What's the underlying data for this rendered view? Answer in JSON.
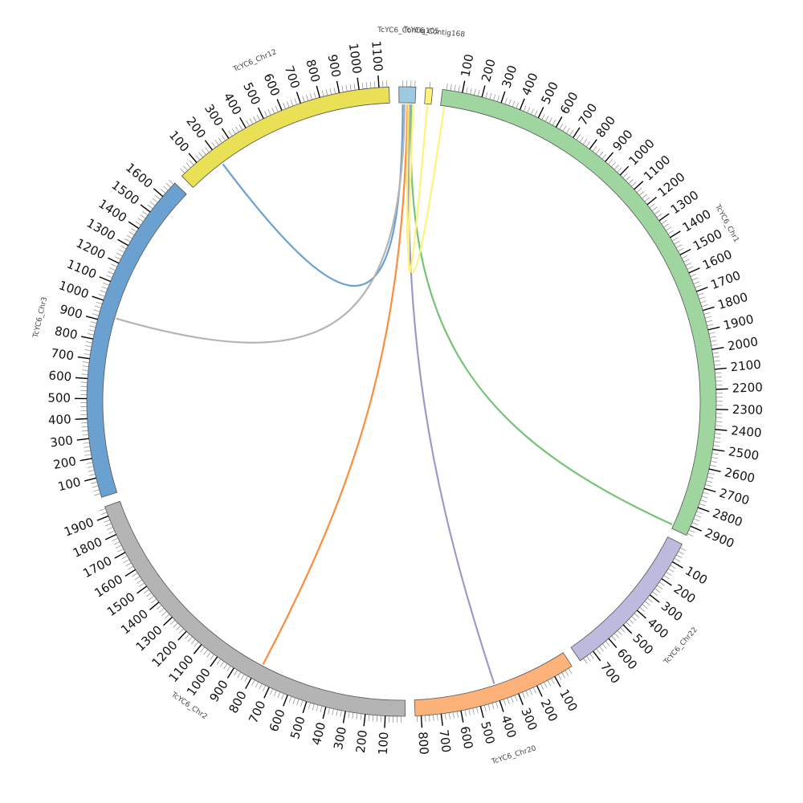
{
  "diagram": {
    "type": "circos",
    "tick_interval": 100,
    "segments": [
      {
        "id": "chr1",
        "name": "TcYC6_Chr1",
        "length": 2950,
        "color": "#9fd6a0"
      },
      {
        "id": "chr22",
        "name": "TcYC6_Chr22",
        "length": 780,
        "color": "#bdbbdd"
      },
      {
        "id": "chr20",
        "name": "TcYC6_Chr20",
        "length": 830,
        "color": "#fdb27a"
      },
      {
        "id": "chr2",
        "name": "TcYC6_Chr2",
        "length": 1950,
        "color": "#b4b4b4"
      },
      {
        "id": "chr3",
        "name": "TcYC6_Chr3",
        "length": 1690,
        "color": "#6aa1d0"
      },
      {
        "id": "chr12",
        "name": "TcYC6_Chr12",
        "length": 1150,
        "color": "#e9e055"
      },
      {
        "id": "ctg105",
        "name": "TcYC6_Contig105",
        "length": 85,
        "color": "#9ecae1"
      },
      {
        "id": "ctg168",
        "name": "TcYC6_Contig168",
        "length": 35,
        "color": "#fff27a"
      }
    ],
    "links": [
      {
        "from": "ctg105",
        "from_pos": 20,
        "to": "chr12",
        "to_pos": 200,
        "color": "#6aa1d0"
      },
      {
        "from": "ctg105",
        "from_pos": 30,
        "to": "chr3",
        "to_pos": 930,
        "color": "#b4b4b4"
      },
      {
        "from": "ctg105",
        "from_pos": 45,
        "to": "chr2",
        "to_pos": 780,
        "color": "#fd8d3c"
      },
      {
        "from": "ctg105",
        "from_pos": 55,
        "to": "chr20",
        "to_pos": 400,
        "color": "#9e9ac8"
      },
      {
        "from": "ctg105",
        "from_pos": 65,
        "to": "chr1",
        "to_pos": 2930,
        "color": "#74c476"
      },
      {
        "from": "ctg168",
        "from_pos": 15,
        "to": "ctg105",
        "to_pos": 75,
        "color": "#fff27a"
      },
      {
        "from": "chr1",
        "from_pos": 20,
        "to": "ctg105",
        "to_pos": 50,
        "color": "#fff27a"
      }
    ]
  }
}
